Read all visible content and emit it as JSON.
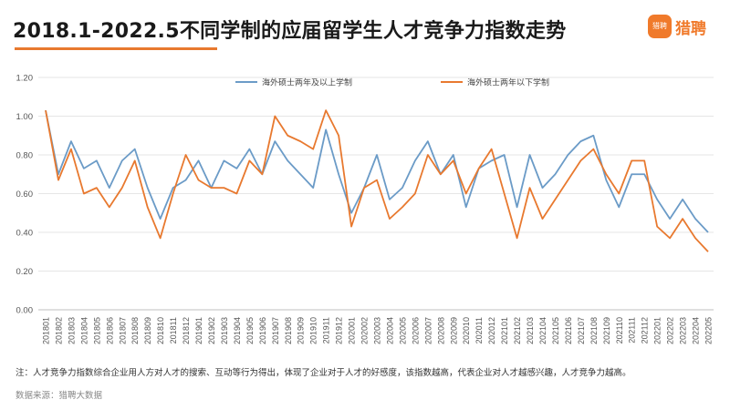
{
  "header": {
    "title": "2018.1-2022.5不同学制的应届留学生人才竞争力指数走势"
  },
  "logo": {
    "mark": "猎聘",
    "text": "猎聘"
  },
  "footer": {
    "note": "注：人才竞争力指数综合企业用人方对人才的搜索、互动等行为得出，体现了企业对于人才的好感度，该指数越高，代表企业对人才越感兴趣，人才竞争力越高。",
    "source": "数据来源：猎聘大数据"
  },
  "chart_data": {
    "type": "line",
    "title": "2018.1-2022.5不同学制的应届留学生人才竞争力指数走势",
    "xlabel": "",
    "ylabel": "",
    "ylim": [
      0,
      1.2
    ],
    "yticks": [
      "0.00",
      "0.20",
      "0.40",
      "0.60",
      "0.80",
      "1.00",
      "1.20"
    ],
    "grid": true,
    "legend_position": "top",
    "categories": [
      "201801",
      "201802",
      "201803",
      "201804",
      "201805",
      "201806",
      "201807",
      "201808",
      "201809",
      "201810",
      "201811",
      "201812",
      "201901",
      "201902",
      "201903",
      "201904",
      "201905",
      "201906",
      "201907",
      "201908",
      "201909",
      "201910",
      "201911",
      "201912",
      "202001",
      "202002",
      "202003",
      "202004",
      "202005",
      "202006",
      "202007",
      "202008",
      "202009",
      "202010",
      "202011",
      "202012",
      "202101",
      "202102",
      "202103",
      "202104",
      "202105",
      "202106",
      "202107",
      "202108",
      "202109",
      "202110",
      "202111",
      "202112",
      "202201",
      "202202",
      "202203",
      "202204",
      "202205"
    ],
    "series": [
      {
        "name": "海外硕士两年及以上学制",
        "color": "#6b9bc7",
        "values": [
          1.03,
          0.7,
          0.87,
          0.73,
          0.77,
          0.63,
          0.77,
          0.83,
          0.63,
          0.47,
          0.63,
          0.67,
          0.77,
          0.63,
          0.77,
          0.73,
          0.83,
          0.7,
          0.87,
          0.77,
          0.7,
          0.63,
          0.93,
          0.7,
          0.5,
          0.63,
          0.8,
          0.57,
          0.63,
          0.77,
          0.87,
          0.7,
          0.8,
          0.53,
          0.73,
          0.77,
          0.8,
          0.53,
          0.8,
          0.63,
          0.7,
          0.8,
          0.87,
          0.9,
          0.67,
          0.53,
          0.7,
          0.7,
          0.57,
          0.47,
          0.57,
          0.47,
          0.4
        ]
      },
      {
        "name": "海外硕士两年以下学制",
        "color": "#e8792f",
        "values": [
          1.03,
          0.67,
          0.83,
          0.6,
          0.63,
          0.53,
          0.63,
          0.77,
          0.53,
          0.37,
          0.6,
          0.8,
          0.67,
          0.63,
          0.63,
          0.6,
          0.77,
          0.7,
          1.0,
          0.9,
          0.87,
          0.83,
          1.03,
          0.9,
          0.43,
          0.63,
          0.67,
          0.47,
          0.53,
          0.6,
          0.8,
          0.7,
          0.77,
          0.6,
          0.73,
          0.83,
          0.6,
          0.37,
          0.63,
          0.47,
          0.57,
          0.67,
          0.77,
          0.83,
          0.7,
          0.6,
          0.77,
          0.77,
          0.43,
          0.37,
          0.47,
          0.37,
          0.3
        ]
      }
    ]
  }
}
